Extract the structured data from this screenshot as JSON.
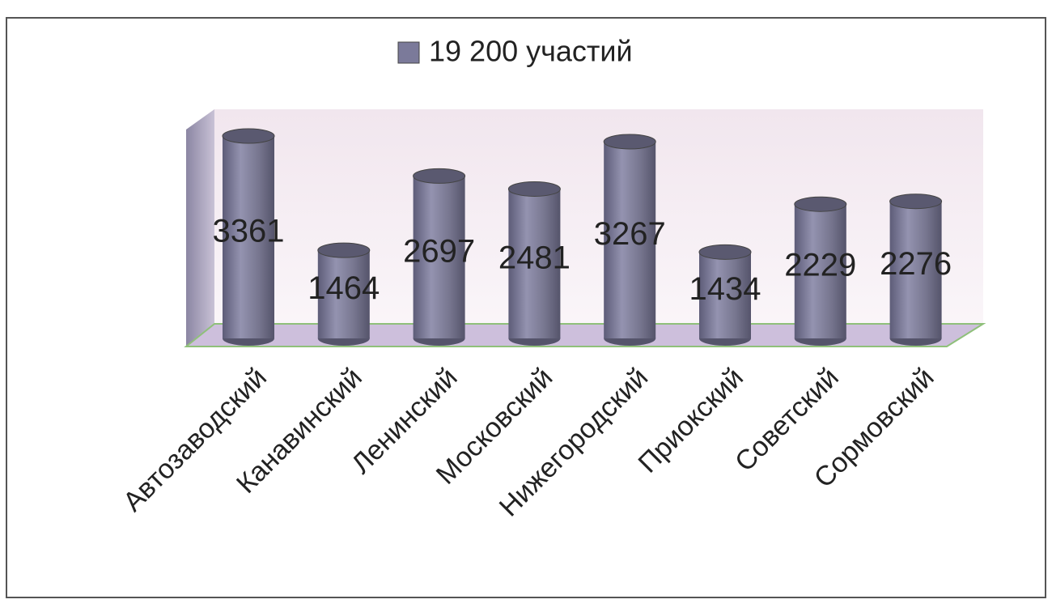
{
  "chart_data": {
    "type": "bar3d",
    "legend": "19 200 участий",
    "color": "#7b7a9a",
    "categories": [
      "Автозаводский",
      "Канавинский",
      "Ленинский",
      "Московский",
      "Нижегородский",
      "Приокский",
      "Советский",
      "Сормовский"
    ],
    "values": [
      3361,
      1464,
      2697,
      2481,
      3267,
      1434,
      2229,
      2276
    ]
  }
}
